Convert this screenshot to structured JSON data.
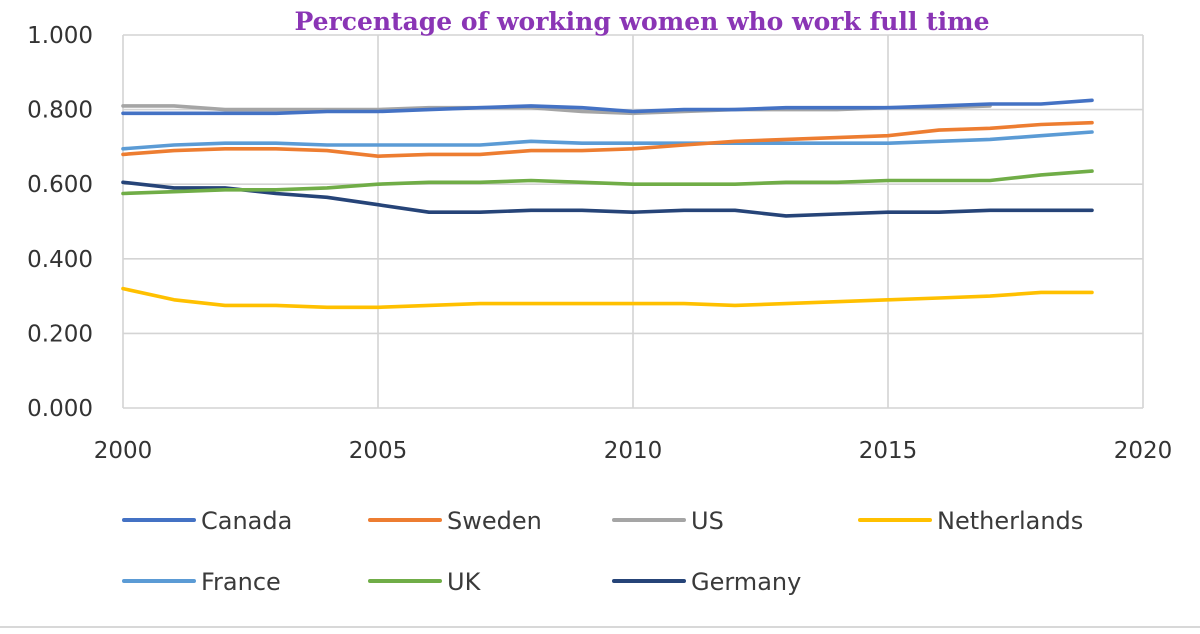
{
  "chart_data": {
    "type": "line",
    "title": "Percentage of working women who work full time",
    "xlabel": "",
    "ylabel": "",
    "xlim": [
      2000,
      2020
    ],
    "ylim": [
      0,
      1
    ],
    "x_ticks": [
      2000,
      2005,
      2010,
      2015,
      2020
    ],
    "y_ticks": [
      0,
      0.2,
      0.4,
      0.6,
      0.8,
      1.0
    ],
    "x_tick_labels": [
      "2000",
      "2005",
      "2010",
      "2015",
      "2020"
    ],
    "y_tick_labels": [
      "0.000",
      "0.200",
      "0.400",
      "0.600",
      "0.800",
      "1.000"
    ],
    "grid": true,
    "legend_position": "bottom",
    "x": [
      2000,
      2001,
      2002,
      2003,
      2004,
      2005,
      2006,
      2007,
      2008,
      2009,
      2010,
      2011,
      2012,
      2013,
      2014,
      2015,
      2016,
      2017,
      2018,
      2019
    ],
    "series": [
      {
        "name": "Canada",
        "color": "#4472c4",
        "values": [
          0.79,
          0.79,
          0.79,
          0.79,
          0.795,
          0.795,
          0.8,
          0.805,
          0.81,
          0.805,
          0.795,
          0.8,
          0.8,
          0.805,
          0.805,
          0.805,
          0.81,
          0.815,
          0.815,
          0.825
        ]
      },
      {
        "name": "Sweden",
        "color": "#ed7d31",
        "values": [
          0.68,
          0.69,
          0.695,
          0.695,
          0.69,
          0.675,
          0.68,
          0.68,
          0.69,
          0.69,
          0.695,
          0.705,
          0.715,
          0.72,
          0.725,
          0.73,
          0.745,
          0.75,
          0.76,
          0.765
        ]
      },
      {
        "name": "US",
        "color": "#a5a5a5",
        "values": [
          0.81,
          0.81,
          0.8,
          0.8,
          0.8,
          0.8,
          0.805,
          0.805,
          0.805,
          0.795,
          0.79,
          0.795,
          0.8,
          0.8,
          0.8,
          0.805,
          0.805,
          0.81,
          null,
          null
        ]
      },
      {
        "name": "Netherlands",
        "color": "#ffc000",
        "values": [
          0.32,
          0.29,
          0.275,
          0.275,
          0.27,
          0.27,
          0.275,
          0.28,
          0.28,
          0.28,
          0.28,
          0.28,
          0.275,
          0.28,
          0.285,
          0.29,
          0.295,
          0.3,
          0.31,
          0.31
        ]
      },
      {
        "name": "France",
        "color": "#5b9bd5",
        "values": [
          0.695,
          0.705,
          0.71,
          0.71,
          0.705,
          0.705,
          0.705,
          0.705,
          0.715,
          0.71,
          0.71,
          0.71,
          0.71,
          0.71,
          0.71,
          0.71,
          0.715,
          0.72,
          0.73,
          0.74
        ]
      },
      {
        "name": "UK",
        "color": "#70ad47",
        "values": [
          0.575,
          0.58,
          0.585,
          0.585,
          0.59,
          0.6,
          0.605,
          0.605,
          0.61,
          0.605,
          0.6,
          0.6,
          0.6,
          0.605,
          0.605,
          0.61,
          0.61,
          0.61,
          0.625,
          0.635
        ]
      },
      {
        "name": "Germany",
        "color": "#264478",
        "values": [
          0.605,
          0.59,
          0.59,
          0.575,
          0.565,
          0.545,
          0.525,
          0.525,
          0.53,
          0.53,
          0.525,
          0.53,
          0.53,
          0.515,
          0.52,
          0.525,
          0.525,
          0.53,
          0.53,
          0.53
        ]
      }
    ]
  }
}
